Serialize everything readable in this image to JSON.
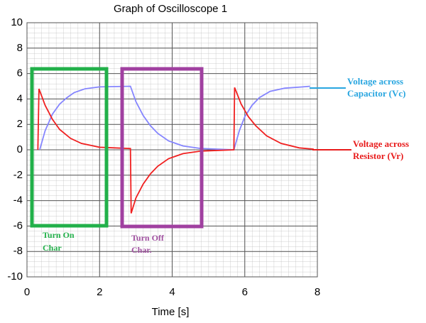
{
  "chart_data": {
    "type": "line",
    "title": "Graph of Oscilloscope 1",
    "x_label": "Time [s]",
    "xlim": [
      0,
      8
    ],
    "xticks": [
      0,
      2,
      4,
      6,
      8
    ],
    "ylim": [
      -10,
      10
    ],
    "yticks": [
      -10,
      -8,
      -6,
      -4,
      -2,
      0,
      2,
      4,
      6,
      8,
      10
    ],
    "grid": true,
    "series": [
      {
        "name": "Voltage across Capacitor (Vc)",
        "color": "#8585ff",
        "x": [
          0.35,
          0.5,
          0.7,
          0.9,
          1.1,
          1.3,
          1.6,
          2.0,
          2.85,
          3.0,
          3.2,
          3.4,
          3.6,
          3.9,
          4.3,
          4.8,
          5.7,
          5.85,
          6.0,
          6.2,
          6.4,
          6.7,
          7.1,
          7.6,
          7.8
        ],
        "values": [
          0,
          1.5,
          2.8,
          3.6,
          4.1,
          4.5,
          4.8,
          4.95,
          5.0,
          3.8,
          2.7,
          1.9,
          1.3,
          0.7,
          0.3,
          0.1,
          0,
          1.5,
          2.6,
          3.5,
          4.1,
          4.6,
          4.85,
          4.95,
          5.0
        ]
      },
      {
        "name": "Voltage across Resistor (Vr)",
        "color": "#f02020",
        "x": [
          0.3,
          0.33,
          0.5,
          0.7,
          0.9,
          1.2,
          1.5,
          2.0,
          2.85,
          2.87,
          3.0,
          3.2,
          3.4,
          3.6,
          3.9,
          4.3,
          4.8,
          5.7,
          5.72,
          5.9,
          6.1,
          6.3,
          6.6,
          7.0,
          7.5,
          7.9
        ],
        "values": [
          0,
          4.8,
          3.5,
          2.4,
          1.6,
          0.9,
          0.5,
          0.2,
          0.1,
          -5,
          -3.8,
          -2.7,
          -1.9,
          -1.3,
          -0.7,
          -0.3,
          -0.1,
          0,
          4.9,
          3.6,
          2.6,
          1.9,
          1.1,
          0.5,
          0.15,
          0.05
        ]
      }
    ],
    "annotations": [
      [
        "Turn On",
        "Char"
      ],
      [
        "Turn Off",
        "Char."
      ]
    ]
  }
}
